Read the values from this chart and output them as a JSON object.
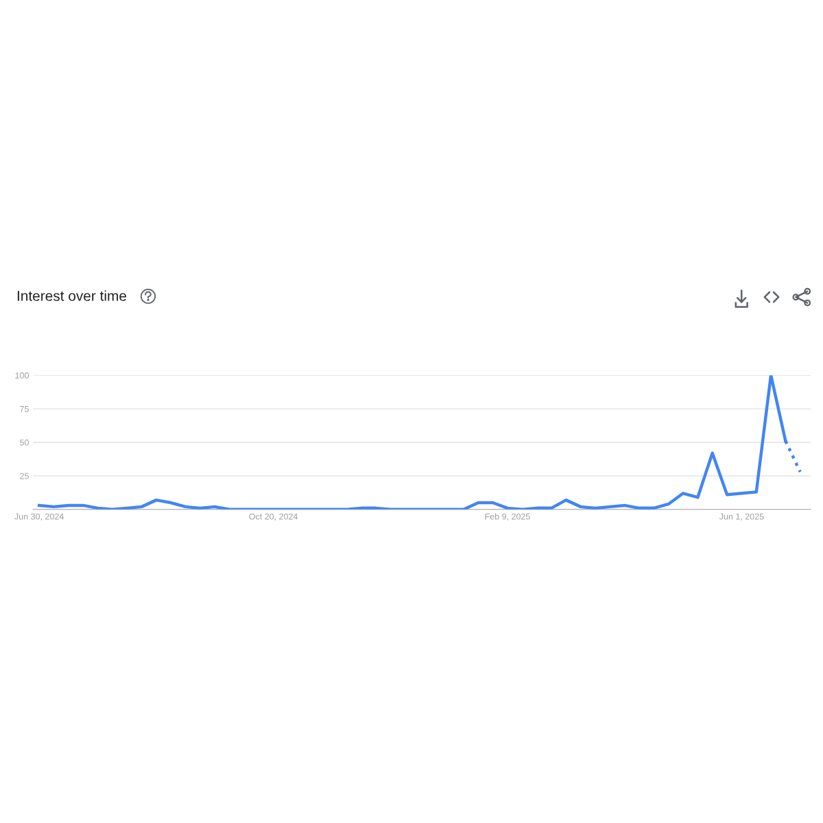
{
  "chart_data": {
    "type": "line",
    "title": "Interest over time",
    "series": [
      {
        "color": "#4285f4",
        "line_style": "solid",
        "x": [
          "2024-06-30",
          "2024-07-07",
          "2024-07-14",
          "2024-07-21",
          "2024-07-28",
          "2024-08-04",
          "2024-08-11",
          "2024-08-18",
          "2024-08-25",
          "2024-09-01",
          "2024-09-08",
          "2024-09-15",
          "2024-09-22",
          "2024-09-29",
          "2024-10-06",
          "2024-10-13",
          "2024-10-20",
          "2024-10-27",
          "2024-11-03",
          "2024-11-10",
          "2024-11-17",
          "2024-11-24",
          "2024-12-01",
          "2024-12-08",
          "2024-12-15",
          "2024-12-22",
          "2024-12-29",
          "2025-01-05",
          "2025-01-12",
          "2025-01-19",
          "2025-01-26",
          "2025-02-02",
          "2025-02-09",
          "2025-02-16",
          "2025-02-23",
          "2025-03-02",
          "2025-03-09",
          "2025-03-16",
          "2025-03-23",
          "2025-03-30",
          "2025-04-06",
          "2025-04-13",
          "2025-04-20",
          "2025-04-27",
          "2025-05-04",
          "2025-05-11",
          "2025-05-18",
          "2025-05-25",
          "2025-06-01",
          "2025-06-08",
          "2025-06-15",
          "2025-06-22"
        ],
        "values": [
          3,
          2,
          3,
          3,
          1,
          0,
          1,
          2,
          7,
          5,
          2,
          1,
          2,
          0,
          0,
          0,
          0,
          0,
          0,
          0,
          0,
          0,
          1,
          1,
          0,
          0,
          0,
          0,
          0,
          0,
          5,
          5,
          1,
          0,
          1,
          1,
          7,
          2,
          1,
          2,
          3,
          1,
          1,
          4,
          12,
          9,
          42,
          11,
          12,
          13,
          100,
          51
        ]
      },
      {
        "color": "#4285f4",
        "line_style": "dotted",
        "x": [
          "2025-06-22",
          "2025-06-29"
        ],
        "values": [
          51,
          28
        ]
      }
    ],
    "xlim": [
      "2024-06-27",
      "2025-07-04"
    ],
    "xticks": [
      {
        "value": "2024-06-30",
        "label": "Jun 30, 2024"
      },
      {
        "value": "2024-10-20",
        "label": "Oct 20, 2024"
      },
      {
        "value": "2025-02-09",
        "label": "Feb 9, 2025"
      },
      {
        "value": "2025-06-01",
        "label": "Jun 1, 2025"
      }
    ],
    "ylim": [
      0,
      100
    ],
    "yticks": [
      {
        "value": 0,
        "label": null
      },
      25,
      50,
      75,
      100
    ],
    "grid": "y",
    "legend": false,
    "marker": "none"
  }
}
